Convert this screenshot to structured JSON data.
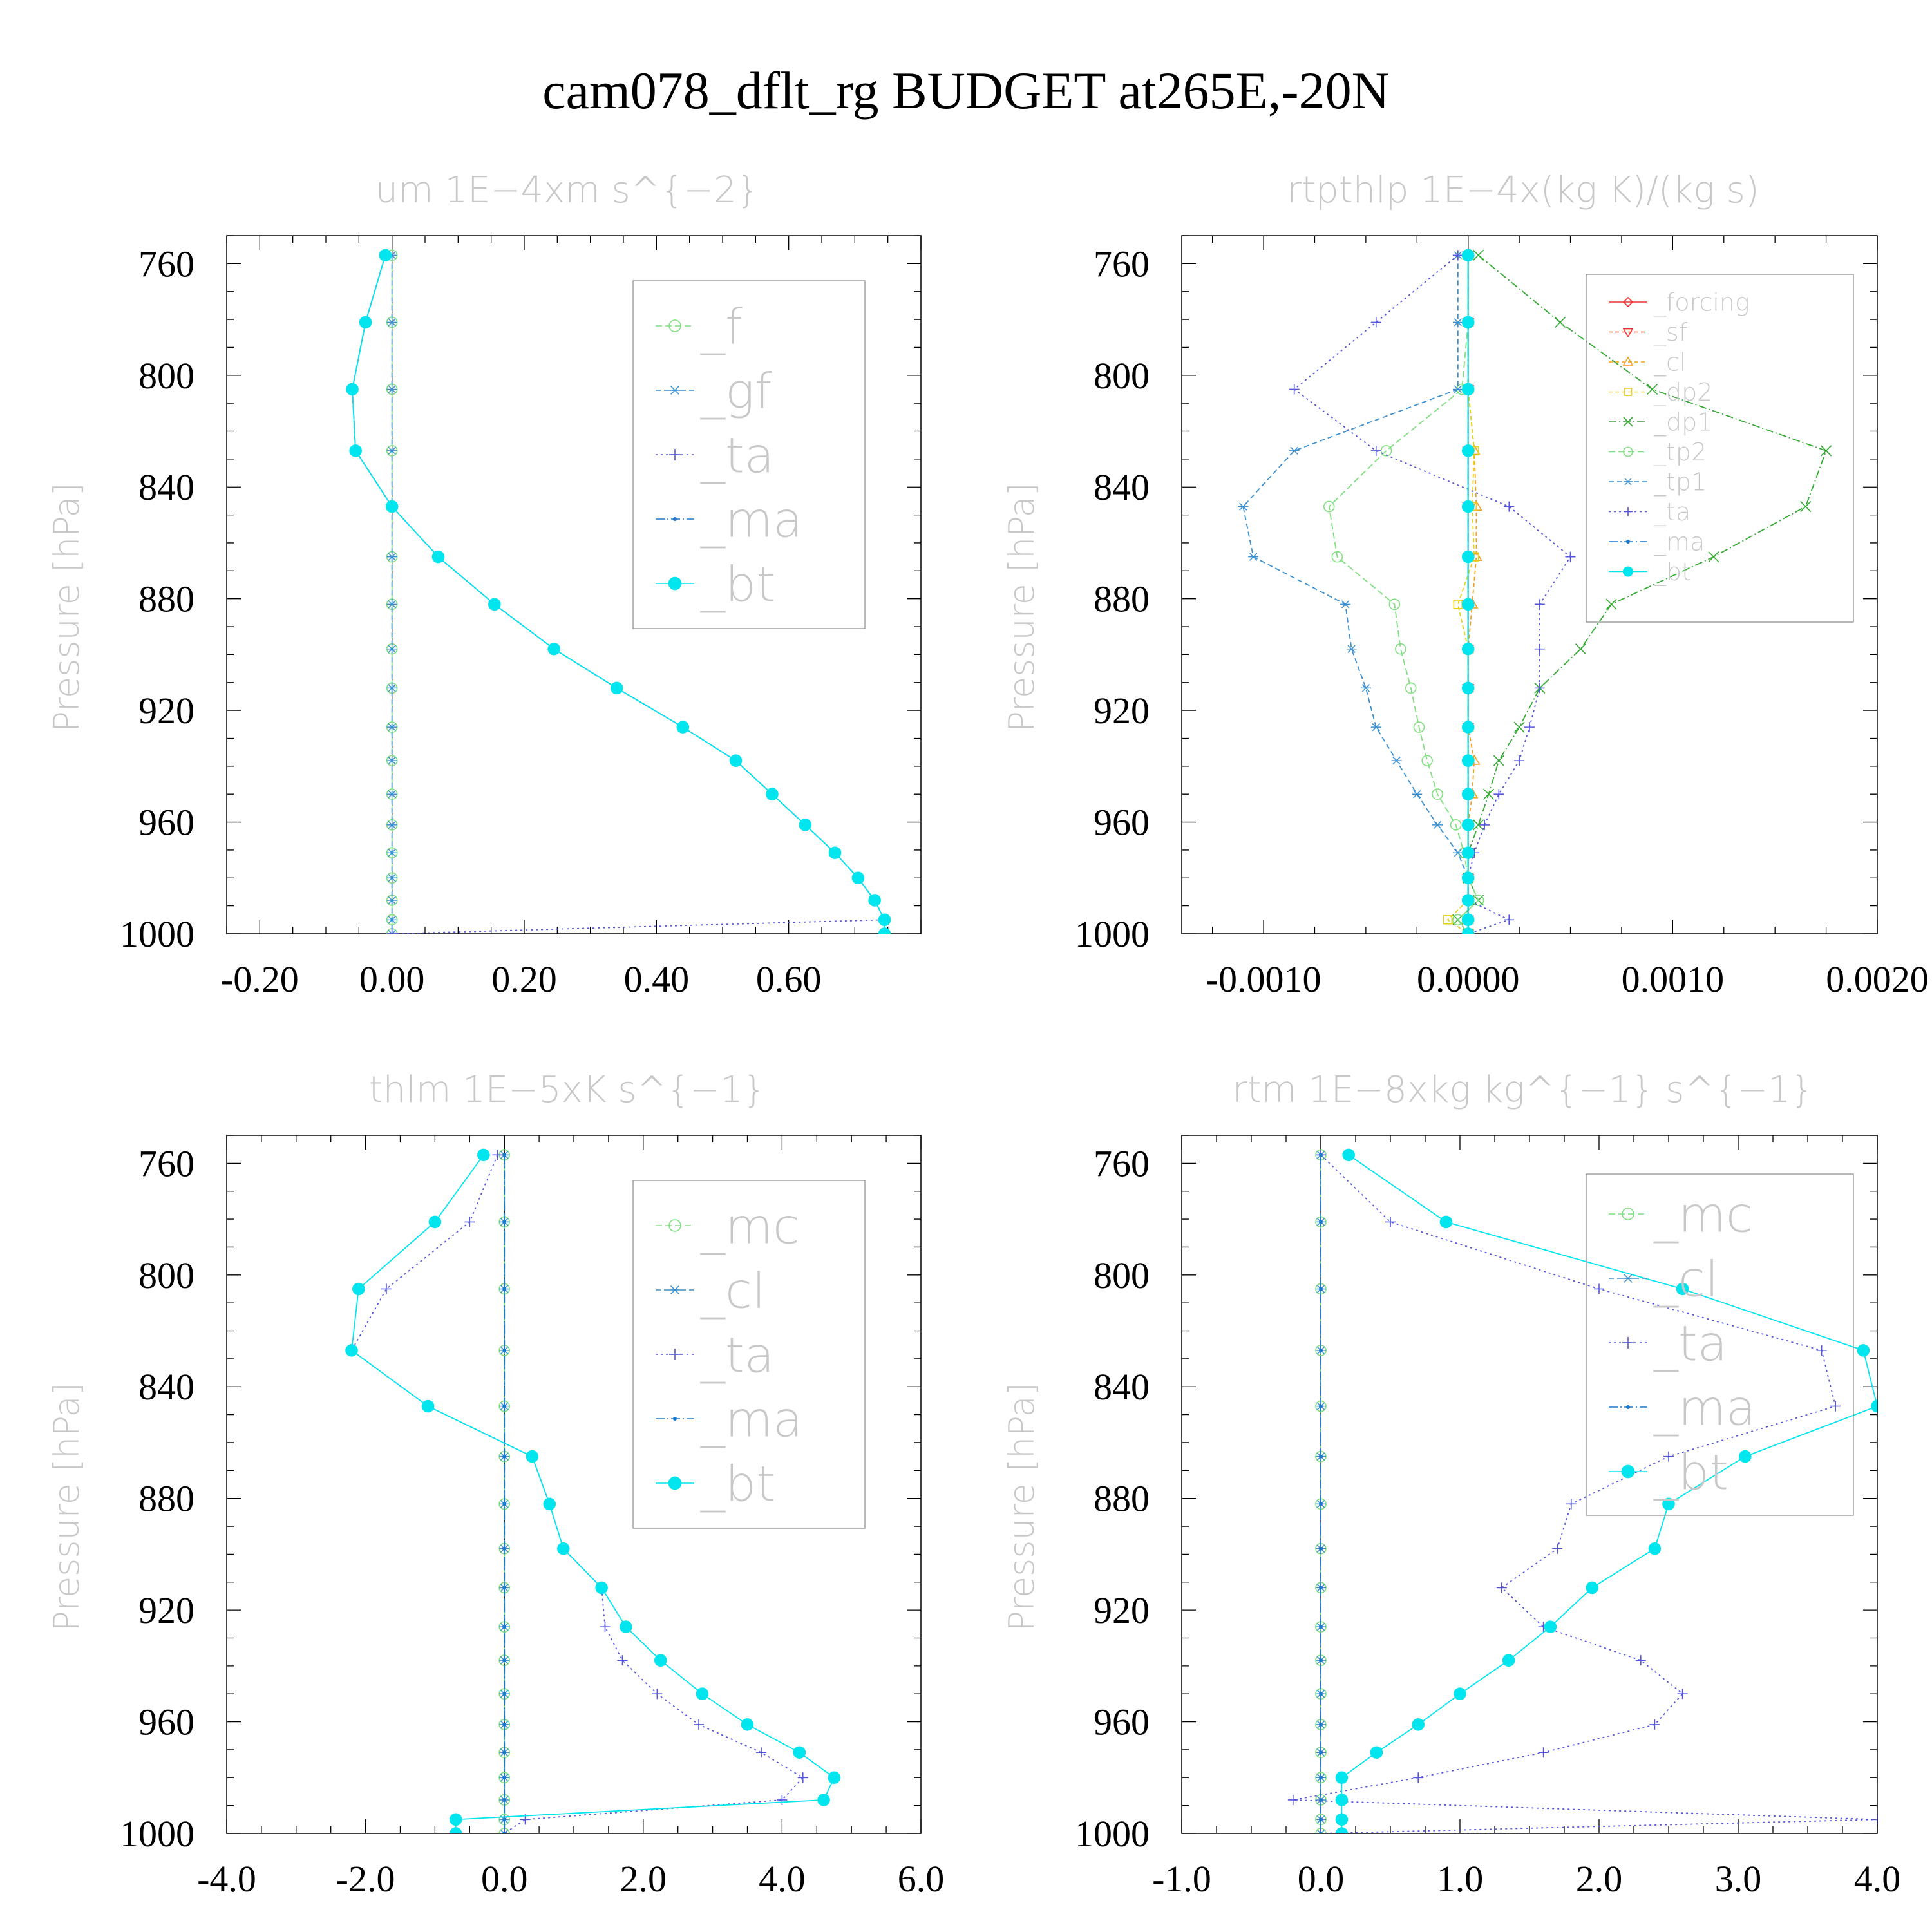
{
  "figure_title": "cam078_dflt_rg  BUDGET at265E,-20N",
  "chart_data": [
    {
      "type": "line",
      "title": "um   1E−4xm s^{−2}",
      "ylabel": "Pressure [hPa]",
      "xlabel": "",
      "xlim": [
        -0.25,
        0.8
      ],
      "ylim": [
        1000,
        750
      ],
      "xticks": [
        -0.2,
        0.0,
        0.2,
        0.4,
        0.6
      ],
      "xtick_labels": [
        "-0.20",
        "0.00",
        "0.20",
        "0.40",
        "0.60"
      ],
      "yticks": [
        760,
        800,
        840,
        880,
        920,
        960,
        1000
      ],
      "ytick_labels": [
        "760",
        "800",
        "840",
        "880",
        "920",
        "960",
        "1000"
      ],
      "legend_position": "top-right",
      "levels": [
        757,
        781,
        805,
        827,
        847,
        865,
        882,
        898,
        912,
        926,
        938,
        950,
        961,
        971,
        980,
        988,
        995,
        1000
      ],
      "series": [
        {
          "name": "_f",
          "color": "#7fe07f",
          "dash": "10,5",
          "marker": "circle-open",
          "values": [
            0,
            0,
            0,
            0,
            0,
            0,
            0,
            0,
            0,
            0,
            0,
            0,
            0,
            0,
            0,
            0,
            0,
            0
          ]
        },
        {
          "name": "_gf",
          "color": "#3a8fd0",
          "dash": "8,5",
          "marker": "asterisk",
          "values": [
            0,
            0,
            0,
            0,
            0,
            0,
            0,
            0,
            0,
            0,
            0,
            0,
            0,
            0,
            0,
            0,
            0,
            0
          ]
        },
        {
          "name": "_ta",
          "color": "#5555dd",
          "dash": "3,5",
          "marker": "plus",
          "values": [
            -0.01,
            -0.04,
            -0.06,
            -0.055,
            0.0,
            0.07,
            0.155,
            0.245,
            0.34,
            0.44,
            0.52,
            0.575,
            0.625,
            0.67,
            0.705,
            0.73,
            0.745,
            0.0
          ]
        },
        {
          "name": "_ma",
          "color": "#1f78c8",
          "dash": "14,4,2,4",
          "marker": "dot",
          "values": [
            -0.01,
            -0.04,
            -0.06,
            -0.055,
            0.0,
            0.07,
            0.155,
            0.245,
            0.34,
            0.44,
            0.52,
            0.575,
            0.625,
            0.67,
            0.705,
            0.73,
            0.745,
            0.745
          ]
        },
        {
          "name": "_bt",
          "color": "#00e5ee",
          "dash": "",
          "marker": "filled-circle",
          "values": [
            -0.01,
            -0.04,
            -0.06,
            -0.055,
            0.0,
            0.07,
            0.155,
            0.245,
            0.34,
            0.44,
            0.52,
            0.575,
            0.625,
            0.67,
            0.705,
            0.73,
            0.745,
            0.745
          ]
        }
      ]
    },
    {
      "type": "line",
      "title": "rtpthlp   1E−4x(kg K)/(kg s)",
      "ylabel": "Pressure [hPa]",
      "xlabel": "",
      "xlim": [
        -0.0014,
        0.002
      ],
      "ylim": [
        1000,
        750
      ],
      "xticks": [
        -0.001,
        0.0,
        0.001,
        0.002
      ],
      "xtick_labels": [
        "-0.0010",
        "0.0000",
        "0.0010",
        "0.0020"
      ],
      "yticks": [
        760,
        800,
        840,
        880,
        920,
        960,
        1000
      ],
      "ytick_labels": [
        "760",
        "800",
        "840",
        "880",
        "920",
        "960",
        "1000"
      ],
      "legend_position": "top-right",
      "levels": [
        757,
        781,
        805,
        827,
        847,
        865,
        882,
        898,
        912,
        926,
        938,
        950,
        961,
        971,
        980,
        988,
        995,
        1000
      ],
      "series": [
        {
          "name": "_forcing",
          "color": "#ee3333",
          "dash": "",
          "marker": "diamond-open",
          "values": [
            0,
            0,
            0,
            0,
            0,
            0,
            0,
            0,
            0,
            0,
            0,
            0,
            0,
            0,
            0,
            0,
            0,
            0
          ]
        },
        {
          "name": "_sf",
          "color": "#ee3333",
          "dash": "6,4",
          "marker": "triangle-down-open",
          "values": [
            0,
            0,
            0,
            0,
            0,
            0,
            0,
            0,
            0,
            0,
            0,
            0,
            0,
            0,
            0,
            0,
            0,
            0
          ]
        },
        {
          "name": "_cl",
          "color": "#f0a020",
          "dash": "6,4",
          "marker": "triangle-up-open",
          "values": [
            0,
            0,
            0,
            3e-05,
            4e-05,
            4e-05,
            2e-05,
            0,
            0,
            0,
            3e-05,
            2e-05,
            0,
            0,
            0,
            0,
            0,
            0
          ]
        },
        {
          "name": "_dp2",
          "color": "#e6d21a",
          "dash": "6,4",
          "marker": "square-open",
          "values": [
            0,
            0,
            0,
            3e-05,
            2e-05,
            3e-05,
            -5e-05,
            0,
            0,
            0,
            0,
            0,
            0,
            0,
            0,
            0,
            -0.0001,
            0
          ]
        },
        {
          "name": "_dp1",
          "color": "#33aa33",
          "dash": "12,4,2,4",
          "marker": "cross",
          "values": [
            5e-05,
            0.00045,
            0.0009,
            0.00175,
            0.00165,
            0.0012,
            0.0007,
            0.00055,
            0.00035,
            0.00025,
            0.00015,
            0.0001,
            5e-05,
            0,
            0,
            5e-05,
            -5e-05,
            0
          ]
        },
        {
          "name": "_tp2",
          "color": "#7fe07f",
          "dash": "10,5",
          "marker": "circle-open",
          "values": [
            0,
            0,
            -3e-05,
            -0.0004,
            -0.00068,
            -0.00064,
            -0.00036,
            -0.00033,
            -0.00028,
            -0.00024,
            -0.0002,
            -0.00015,
            -6e-05,
            -2e-05,
            0,
            5e-05,
            -5e-05,
            0
          ]
        },
        {
          "name": "_tp1",
          "color": "#3a8fd0",
          "dash": "8,5",
          "marker": "asterisk",
          "values": [
            -5e-05,
            -5e-05,
            -5e-05,
            -0.00085,
            -0.0011,
            -0.00105,
            -0.0006,
            -0.00057,
            -0.0005,
            -0.00045,
            -0.00035,
            -0.00025,
            -0.00015,
            -5e-05,
            0,
            0,
            0,
            0
          ]
        },
        {
          "name": "_ta",
          "color": "#5555dd",
          "dash": "3,5",
          "marker": "plus",
          "values": [
            -5e-05,
            -0.00045,
            -0.00085,
            -0.00045,
            0.0002,
            0.0005,
            0.00035,
            0.00035,
            0.00035,
            0.0003,
            0.00025,
            0.00015,
            8e-05,
            3e-05,
            0,
            0,
            0.0002,
            0
          ]
        },
        {
          "name": "_ma",
          "color": "#1f78c8",
          "dash": "14,4,2,4",
          "marker": "dot",
          "values": [
            0,
            0,
            0,
            0,
            0,
            0,
            0,
            0,
            0,
            0,
            0,
            0,
            0,
            0,
            0,
            0,
            0,
            0
          ]
        },
        {
          "name": "_bt",
          "color": "#00e5ee",
          "dash": "",
          "marker": "filled-circle",
          "values": [
            0,
            0,
            0,
            0,
            0,
            0,
            0,
            0,
            0,
            0,
            0,
            0,
            0,
            0,
            0,
            0,
            0,
            0
          ]
        }
      ]
    },
    {
      "type": "line",
      "title": "thlm   1E−5xK s^{−1}",
      "ylabel": "Pressure [hPa]",
      "xlabel": "",
      "xlim": [
        -4.0,
        6.0
      ],
      "ylim": [
        1000,
        750
      ],
      "xticks": [
        -4.0,
        -2.0,
        0.0,
        2.0,
        4.0,
        6.0
      ],
      "xtick_labels": [
        "-4.0",
        "-2.0",
        "0.0",
        "2.0",
        "4.0",
        "6.0"
      ],
      "yticks": [
        760,
        800,
        840,
        880,
        920,
        960,
        1000
      ],
      "ytick_labels": [
        "760",
        "800",
        "840",
        "880",
        "920",
        "960",
        "1000"
      ],
      "legend_position": "top-right",
      "levels": [
        757,
        781,
        805,
        827,
        847,
        865,
        882,
        898,
        912,
        926,
        938,
        950,
        961,
        971,
        980,
        988,
        995,
        1000
      ],
      "series": [
        {
          "name": "_mc",
          "color": "#7fe07f",
          "dash": "10,5",
          "marker": "circle-open",
          "values": [
            0,
            0,
            0,
            0,
            0,
            0,
            0,
            0,
            0,
            0,
            0,
            0,
            0,
            0,
            0,
            0,
            0,
            0
          ]
        },
        {
          "name": "_cl",
          "color": "#3a8fd0",
          "dash": "8,5",
          "marker": "asterisk",
          "values": [
            0,
            0,
            0,
            0,
            0,
            0,
            0,
            0,
            0,
            0,
            0,
            0,
            0,
            0,
            0,
            0,
            0,
            0
          ]
        },
        {
          "name": "_ta",
          "color": "#5555dd",
          "dash": "3,5",
          "marker": "plus",
          "values": [
            -0.1,
            -0.5,
            -1.7,
            -2.2,
            -1.1,
            0.4,
            0.65,
            0.85,
            1.4,
            1.45,
            1.7,
            2.2,
            2.8,
            3.7,
            4.3,
            4.0,
            0.3,
            0.0
          ]
        },
        {
          "name": "_ma",
          "color": "#1f78c8",
          "dash": "14,4,2,4",
          "marker": "dot",
          "values": [
            0,
            0,
            0,
            0,
            0,
            0,
            0,
            0,
            0,
            0,
            0,
            0,
            0,
            0,
            0,
            0,
            0,
            0
          ]
        },
        {
          "name": "_bt",
          "color": "#00e5ee",
          "dash": "",
          "marker": "filled-circle",
          "values": [
            -0.3,
            -1.0,
            -2.1,
            -2.2,
            -1.1,
            0.4,
            0.65,
            0.85,
            1.4,
            1.75,
            2.25,
            2.85,
            3.5,
            4.25,
            4.75,
            4.6,
            -0.7,
            -0.7
          ]
        }
      ]
    },
    {
      "type": "line",
      "title": "rtm   1E−8xkg kg^{−1} s^{−1}",
      "ylabel": "Pressure [hPa]",
      "xlabel": "",
      "xlim": [
        -1.0,
        4.0
      ],
      "ylim": [
        1000,
        750
      ],
      "xticks": [
        -1.0,
        0.0,
        1.0,
        2.0,
        3.0,
        4.0
      ],
      "xtick_labels": [
        "-1.0",
        "0.0",
        "1.0",
        "2.0",
        "3.0",
        "4.0"
      ],
      "yticks": [
        760,
        800,
        840,
        880,
        920,
        960,
        1000
      ],
      "ytick_labels": [
        "760",
        "800",
        "840",
        "880",
        "920",
        "960",
        "1000"
      ],
      "legend_position": "top-right",
      "levels": [
        757,
        781,
        805,
        827,
        847,
        865,
        882,
        898,
        912,
        926,
        938,
        950,
        961,
        971,
        980,
        988,
        995,
        1000
      ],
      "series": [
        {
          "name": "_mc",
          "color": "#7fe07f",
          "dash": "10,5",
          "marker": "circle-open",
          "values": [
            0,
            0,
            0,
            0,
            0,
            0,
            0,
            0,
            0,
            0,
            0,
            0,
            0,
            0,
            0,
            0,
            0,
            0
          ]
        },
        {
          "name": "_cl",
          "color": "#3a8fd0",
          "dash": "8,5",
          "marker": "asterisk",
          "values": [
            0,
            0,
            0,
            0,
            0,
            0,
            0,
            0,
            0,
            0,
            0,
            0,
            0,
            0,
            0,
            0,
            0,
            0
          ]
        },
        {
          "name": "_ta",
          "color": "#5555dd",
          "dash": "3,5",
          "marker": "plus",
          "values": [
            0,
            0.5,
            2.0,
            3.6,
            3.7,
            2.5,
            1.8,
            1.7,
            1.3,
            1.6,
            2.3,
            2.6,
            2.4,
            1.6,
            0.7,
            -0.2,
            4.0,
            0.0
          ]
        },
        {
          "name": "_ma",
          "color": "#1f78c8",
          "dash": "14,4,2,4",
          "marker": "dot",
          "values": [
            0,
            0,
            0,
            0,
            0,
            0,
            0,
            0,
            0,
            0,
            0,
            0,
            0,
            0,
            0,
            0,
            0,
            0
          ]
        },
        {
          "name": "_bt",
          "color": "#00e5ee",
          "dash": "",
          "marker": "filled-circle",
          "values": [
            0.2,
            0.9,
            2.6,
            3.9,
            4.0,
            3.05,
            2.5,
            2.4,
            1.95,
            1.65,
            1.35,
            1.0,
            0.7,
            0.4,
            0.15,
            0.15,
            0.15,
            0.15
          ]
        }
      ]
    }
  ]
}
